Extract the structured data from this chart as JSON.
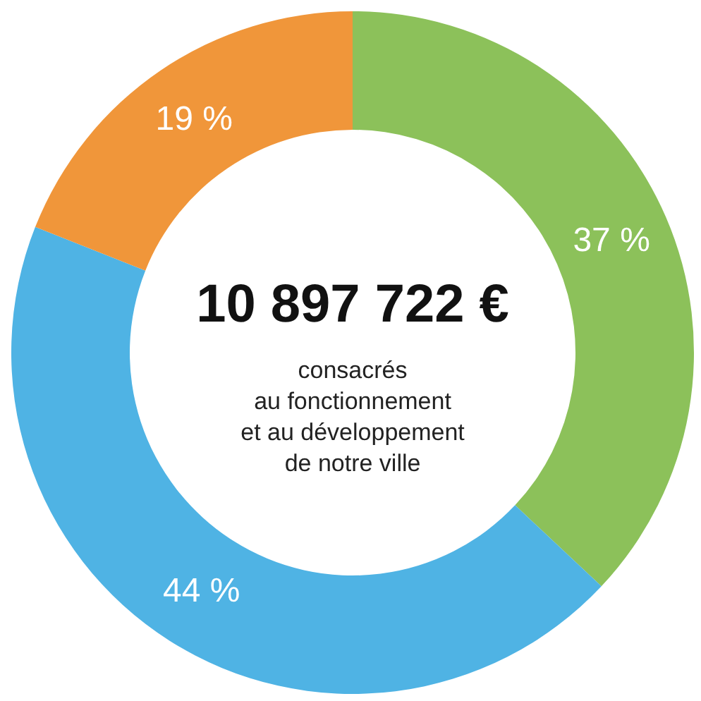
{
  "chart_data": {
    "type": "donut",
    "title": "10 897 722 €",
    "subtitle": "consacrés\nau fonctionnement\net au développement\nde notre ville",
    "categories": [
      null,
      null,
      null
    ],
    "values": [
      37,
      44,
      19
    ],
    "colors": [
      "#8cc15a",
      "#4fb3e4",
      "#f0963a"
    ],
    "value_labels": [
      "37 %",
      "44 %",
      "19 %"
    ]
  }
}
